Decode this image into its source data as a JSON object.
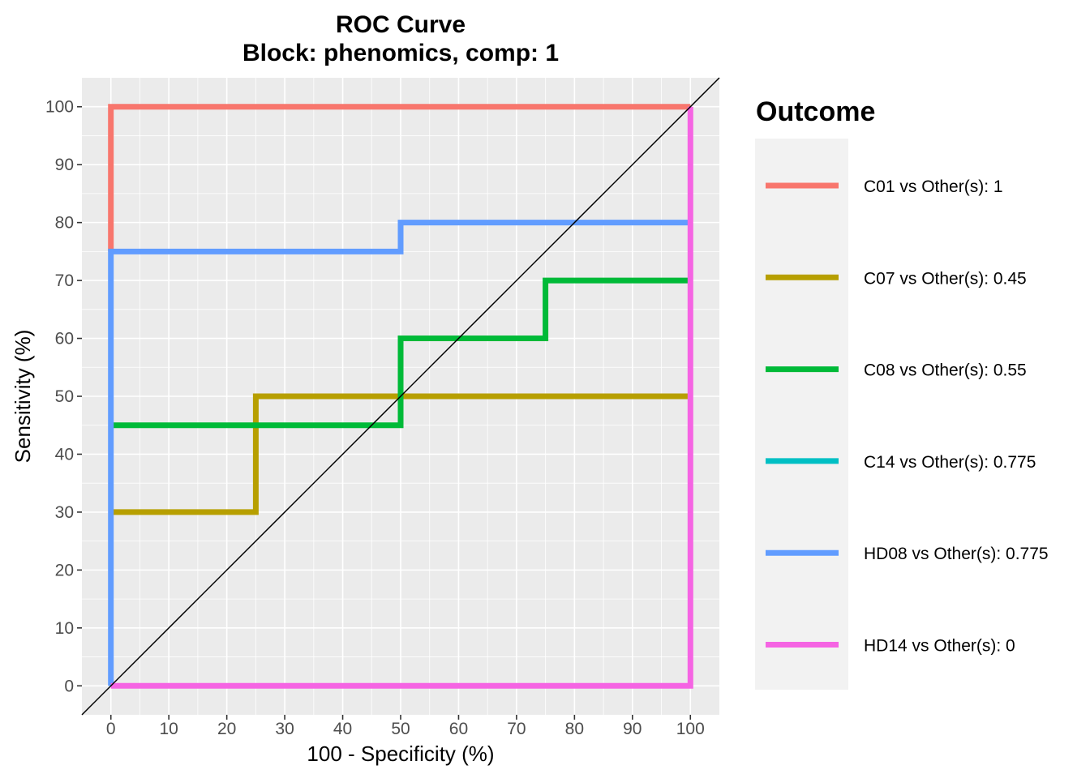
{
  "chart_data": {
    "type": "line",
    "title": "ROC Curve",
    "subtitle": "Block: phenomics, comp: 1",
    "xlabel": "100 - Specificity (%)",
    "ylabel": "Sensitivity (%)",
    "xlim": [
      -5,
      105
    ],
    "ylim": [
      -5,
      105
    ],
    "x_ticks": [
      "0",
      "10",
      "20",
      "30",
      "40",
      "50",
      "60",
      "70",
      "80",
      "90",
      "100"
    ],
    "y_ticks": [
      "0",
      "10",
      "20",
      "30",
      "40",
      "50",
      "60",
      "70",
      "80",
      "90",
      "100"
    ],
    "grid": true,
    "legend": {
      "title": "Outcome",
      "position": "right"
    },
    "reference_line": {
      "x": [
        -5,
        105
      ],
      "y": [
        -5,
        105
      ],
      "color": "#000000"
    },
    "series": [
      {
        "name": "C01 vs Other(s): 1",
        "color": "#F8766D",
        "x": [
          0,
          0,
          100
        ],
        "y": [
          75,
          100,
          100
        ]
      },
      {
        "name": "C07 vs Other(s): 0.45",
        "color": "#B79F00",
        "x": [
          0,
          25,
          25,
          100
        ],
        "y": [
          30,
          30,
          50,
          50
        ]
      },
      {
        "name": "C08 vs Other(s): 0.55",
        "color": "#00BA38",
        "x": [
          0,
          50,
          50,
          75,
          75,
          100
        ],
        "y": [
          45,
          45,
          60,
          60,
          70,
          70
        ]
      },
      {
        "name": "C14 vs Other(s): 0.775",
        "color": "#00BFC4",
        "x": [],
        "y": []
      },
      {
        "name": "HD08 vs Other(s): 0.775",
        "color": "#619CFF",
        "x": [
          0,
          0,
          50,
          50,
          100
        ],
        "y": [
          0,
          75,
          75,
          80,
          80
        ]
      },
      {
        "name": "HD14 vs Other(s): 0",
        "color": "#F564E3",
        "x": [
          0,
          100,
          100
        ],
        "y": [
          0,
          0,
          100
        ]
      }
    ]
  }
}
